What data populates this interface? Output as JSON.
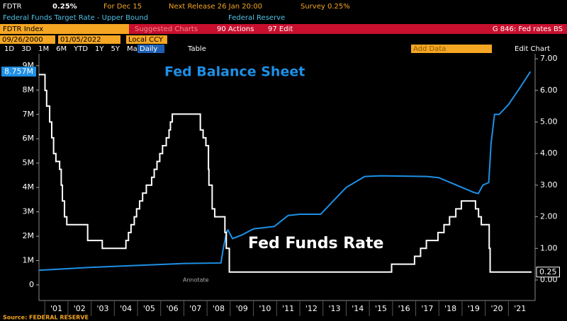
{
  "header": {
    "ticker": "FDTR",
    "last": "0.25%",
    "for": "For Dec 15",
    "next": "Next Release 26 Jan 20:00",
    "survey": "Survey 0.25%",
    "desc": "Federal Funds Target Rate - Upper Bound",
    "source_name": "Federal Reserve",
    "index": "FDTR Index",
    "suggested": "Suggested Charts",
    "actions": "90 Actions",
    "edit": "97 Edit",
    "gtitle": "G 846: Fed rates BS",
    "start": "09/26/2000",
    "end": "01/05/2022",
    "ccy": "Local CCY",
    "periods": [
      "1D",
      "3D",
      "1M",
      "6M",
      "YTD",
      "1Y",
      "5Y",
      "Max"
    ],
    "freq": "Daily",
    "table": "Table",
    "add_data": "Add Data",
    "edit_chart": "Edit Chart"
  },
  "chart_data": {
    "type": "line",
    "annotations": [
      "Fed Balance Sheet",
      "Fed Funds Rate",
      "Annotate"
    ],
    "source": "Source: FEDERAL RESERVE",
    "xlim": [
      2000.75,
      2022.15
    ],
    "xticks": [
      {
        "value": 2001,
        "label": "'01"
      },
      {
        "value": 2002,
        "label": "'02"
      },
      {
        "value": 2003,
        "label": "'03"
      },
      {
        "value": 2004,
        "label": "'04"
      },
      {
        "value": 2005,
        "label": "'05"
      },
      {
        "value": 2006,
        "label": "'06"
      },
      {
        "value": 2007,
        "label": "'07"
      },
      {
        "value": 2008,
        "label": "'08"
      },
      {
        "value": 2009,
        "label": "'09"
      },
      {
        "value": 2010,
        "label": "'10"
      },
      {
        "value": 2011,
        "label": "'11"
      },
      {
        "value": 2012,
        "label": "'12"
      },
      {
        "value": 2013,
        "label": "'13"
      },
      {
        "value": 2014,
        "label": "'14"
      },
      {
        "value": 2015,
        "label": "'15"
      },
      {
        "value": 2016,
        "label": "'16"
      },
      {
        "value": 2017,
        "label": "'17"
      },
      {
        "value": 2018,
        "label": "'18"
      },
      {
        "value": 2019,
        "label": "'19"
      },
      {
        "value": 2020,
        "label": "'20"
      },
      {
        "value": 2021,
        "label": "'21"
      }
    ],
    "ylim": [
      -0.64,
      9.49
    ],
    "yticks": [
      0,
      {
        "value": 1,
        "label": "1M"
      },
      {
        "value": 2,
        "label": "2M"
      },
      {
        "value": 3,
        "label": "3M"
      },
      {
        "value": 4,
        "label": "4M"
      },
      {
        "value": 5,
        "label": "5M"
      },
      {
        "value": 6,
        "label": "6M"
      },
      {
        "value": 7,
        "label": "7M"
      },
      {
        "value": 8,
        "label": "8M"
      },
      {
        "value": 9,
        "label": "9M"
      }
    ],
    "y2lim": [
      -0.65,
      7.16
    ],
    "y2ticks": [
      {
        "value": 0,
        "label": "0.00"
      },
      {
        "value": 1,
        "label": "1.00"
      },
      {
        "value": 2,
        "label": "2.00"
      },
      {
        "value": 3,
        "label": "3.00"
      },
      {
        "value": 4,
        "label": "4.00"
      },
      {
        "value": 5,
        "label": "5.00"
      },
      {
        "value": 6,
        "label": "6.00"
      },
      {
        "value": 7,
        "label": "7.00"
      }
    ],
    "series": [
      {
        "name": "Fed Balance Sheet",
        "color": "#1e90e6",
        "step": false,
        "last_label": "8.757M",
        "x": [
          2000.75,
          2003,
          2005,
          2007,
          2008.6,
          2008.7,
          2008.85,
          2008.9,
          2009.1,
          2009.5,
          2010,
          2010.9,
          2011.5,
          2012,
          2012.9,
          2013.5,
          2014,
          2014.8,
          2015.5,
          2017.5,
          2018,
          2019.5,
          2019.7,
          2019.9,
          2020.15,
          2020.25,
          2020.4,
          2020.6,
          2021,
          2021.5,
          2021.95
        ],
        "values": [
          0.6,
          0.72,
          0.8,
          0.88,
          0.9,
          1.5,
          2.2,
          2.25,
          1.9,
          2.05,
          2.3,
          2.4,
          2.85,
          2.9,
          2.9,
          3.5,
          4.0,
          4.45,
          4.48,
          4.45,
          4.4,
          3.8,
          3.75,
          4.1,
          4.2,
          5.8,
          7.0,
          7.0,
          7.4,
          8.1,
          8.757
        ]
      },
      {
        "name": "Fed Funds Rate",
        "color": "#ffffff",
        "axis": "y2",
        "step": true,
        "last_label": "0.25",
        "x": [
          2000.75,
          2001.01,
          2001.08,
          2001.21,
          2001.3,
          2001.38,
          2001.48,
          2001.64,
          2001.71,
          2001.76,
          2001.85,
          2001.95,
          2002.85,
          2003.48,
          2004.5,
          2004.61,
          2004.72,
          2004.86,
          2004.96,
          2005.09,
          2005.22,
          2005.38,
          2005.61,
          2005.72,
          2005.84,
          2005.96,
          2006.08,
          2006.24,
          2006.36,
          2006.42,
          2006.5,
          2007.71,
          2007.83,
          2007.95,
          2008.06,
          2008.08,
          2008.22,
          2008.33,
          2008.77,
          2008.83,
          2008.96,
          2015.96,
          2016.95,
          2017.21,
          2017.46,
          2017.96,
          2018.22,
          2018.46,
          2018.73,
          2018.97,
          2019.58,
          2019.71,
          2019.83,
          2020.17,
          2020.21,
          2022.0
        ],
        "values": [
          6.5,
          6.0,
          5.5,
          5.0,
          4.5,
          4.0,
          3.75,
          3.5,
          3.0,
          2.5,
          2.0,
          1.75,
          1.25,
          1.0,
          1.25,
          1.5,
          1.75,
          2.0,
          2.25,
          2.5,
          2.75,
          3.0,
          3.25,
          3.5,
          3.75,
          4.0,
          4.25,
          4.5,
          4.75,
          5.0,
          5.25,
          4.75,
          4.5,
          4.25,
          3.5,
          3.0,
          2.25,
          2.0,
          1.5,
          1.0,
          0.25,
          0.5,
          0.75,
          1.0,
          1.25,
          1.5,
          1.75,
          2.0,
          2.25,
          2.5,
          2.25,
          2.0,
          1.75,
          1.0,
          0.25,
          0.25
        ]
      }
    ]
  }
}
